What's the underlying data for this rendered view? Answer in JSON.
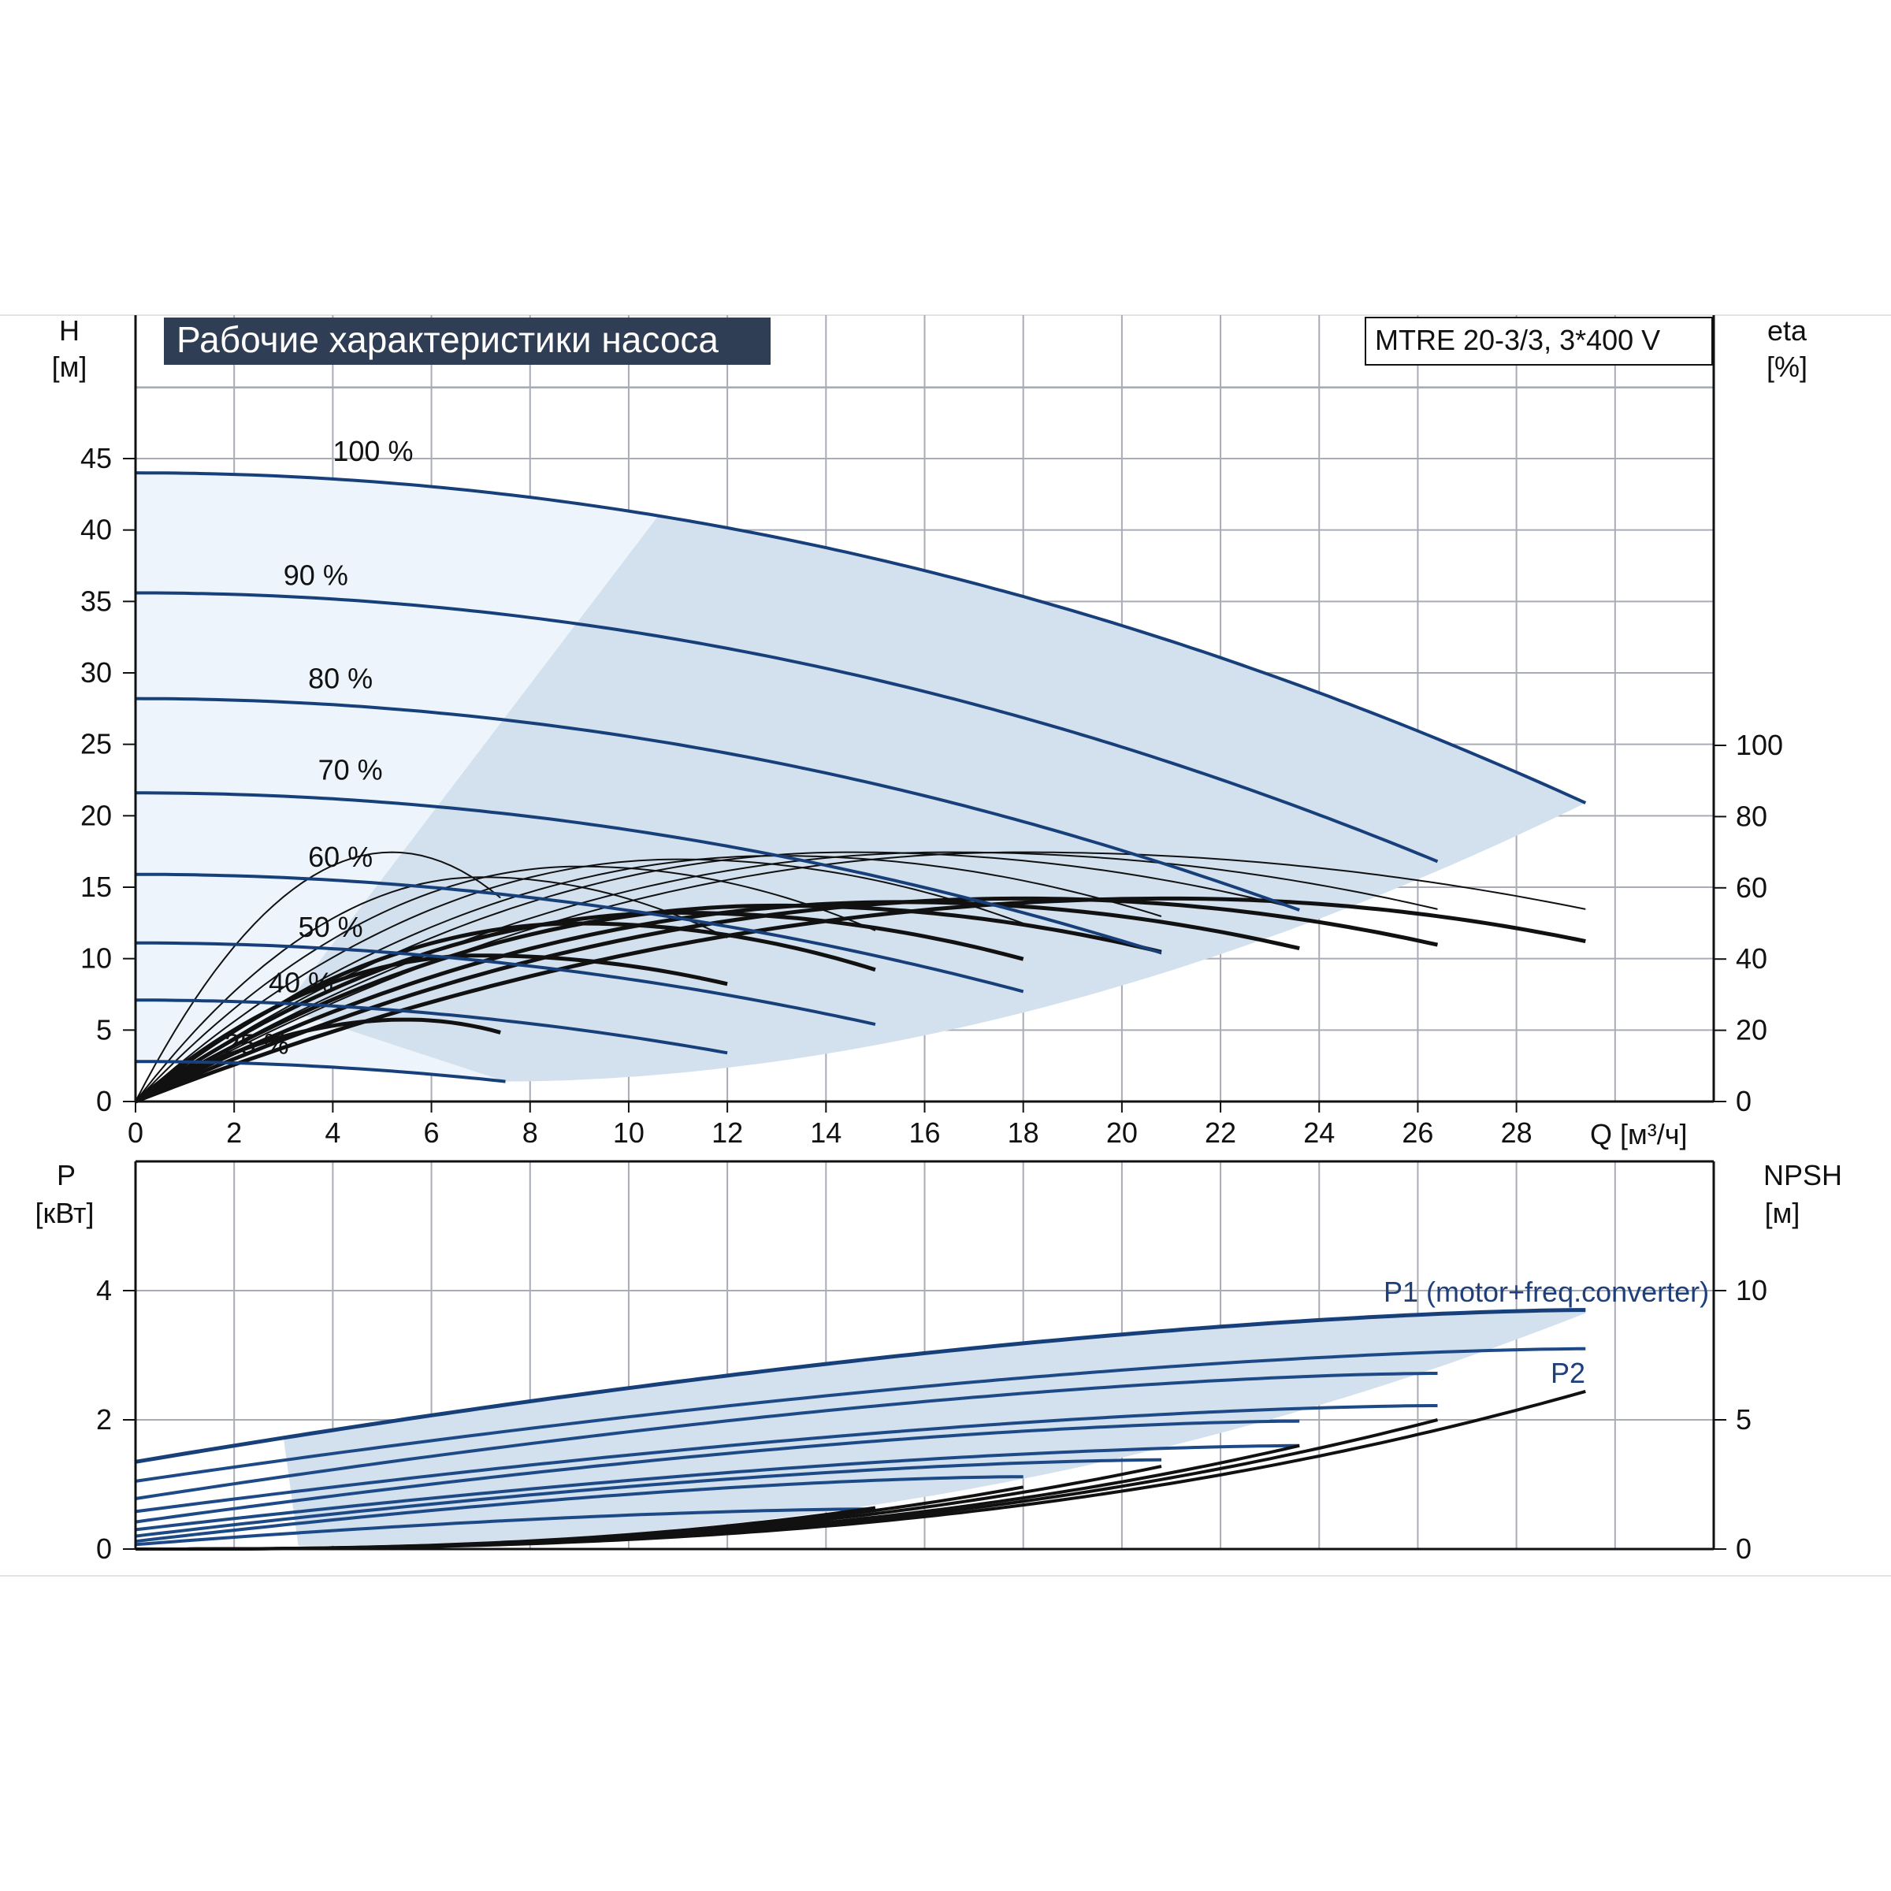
{
  "chart_data": [
    {
      "type": "line",
      "title": "Рабочие характеристики насоса",
      "model": "MTRE 20-3/3, 3*400 V",
      "xlabel": "Q [м³/ч]",
      "ylabel": "H",
      "ylabel_unit": "[м]",
      "y2label": "eta",
      "y2label_unit": "[%]",
      "xlim": [
        0,
        32
      ],
      "ylim": [
        0,
        50
      ],
      "y2lim": [
        0,
        100
      ],
      "x_ticks": [
        "0",
        "2",
        "4",
        "6",
        "8",
        "10",
        "12",
        "14",
        "16",
        "18",
        "20",
        "22",
        "24",
        "26",
        "28"
      ],
      "y_ticks": [
        "0",
        "5",
        "10",
        "15",
        "20",
        "25",
        "30",
        "35",
        "40",
        "45"
      ],
      "y2_ticks": [
        "0",
        "20",
        "40",
        "60",
        "80",
        "100"
      ],
      "grid": true,
      "operating_range_fill": "#d3e0ee",
      "speed_curves": [
        {
          "name": "100 %",
          "H0": 44,
          "max_q": 29.4,
          "h_end": 20.9,
          "label_x": 4,
          "label_y": 45.5
        },
        {
          "name": "90 %",
          "H0": 35.6,
          "max_q": 26.4,
          "h_end": 16.8,
          "label_x": 3,
          "label_y": 36.8
        },
        {
          "name": "80 %",
          "H0": 28.2,
          "max_q": 23.6,
          "h_end": 13.4,
          "label_x": 3.5,
          "label_y": 29.6
        },
        {
          "name": "70 %",
          "H0": 21.6,
          "max_q": 20.8,
          "h_end": 10.4,
          "label_x": 3.7,
          "label_y": 23.2
        },
        {
          "name": "60 %",
          "H0": 15.9,
          "max_q": 18,
          "h_end": 7.7,
          "label_x": 3.5,
          "label_y": 17.1
        },
        {
          "name": "50 %",
          "H0": 11.1,
          "max_q": 15,
          "h_end": 5.4,
          "label_x": 3.3,
          "label_y": 12.2
        },
        {
          "name": "40 %",
          "H0": 7.1,
          "max_q": 12,
          "h_end": 3.4,
          "label_x": 2.7,
          "label_y": 8.3
        },
        {
          "name": "25 %",
          "H0": 2.8,
          "max_q": 7.5,
          "h_end": 1.4,
          "label_x": 1.8,
          "label_y": 4.0
        }
      ],
      "eta_curves": [
        {
          "speed": "100 %",
          "peak_q": 18,
          "peak_eta": 70,
          "max_q": 29.4,
          "eta_end": 54
        },
        {
          "speed": "90 %",
          "peak_q": 16.5,
          "peak_eta": 70,
          "max_q": 26.4,
          "eta_end": 54
        },
        {
          "speed": "80 %",
          "peak_q": 14.5,
          "peak_eta": 70,
          "max_q": 23.6,
          "eta_end": 54
        },
        {
          "speed": "70 %",
          "peak_q": 13,
          "peak_eta": 69,
          "max_q": 20.8,
          "eta_end": 52
        },
        {
          "speed": "60 %",
          "peak_q": 11,
          "peak_eta": 68,
          "max_q": 18,
          "eta_end": 50
        },
        {
          "speed": "50 %",
          "peak_q": 9,
          "peak_eta": 66,
          "max_q": 15,
          "eta_end": 48
        },
        {
          "speed": "40 %",
          "peak_q": 7,
          "peak_eta": 63,
          "max_q": 12,
          "eta_end": 46
        },
        {
          "speed": "25 %",
          "peak_q": 5.2,
          "peak_eta": 70,
          "max_q": 7.5,
          "eta_end": 56
        },
        {
          "speed": "total",
          "peak_q": 21,
          "peak_eta": 57,
          "max_q": 29.4,
          "eta_end": 45
        },
        {
          "speed": "total",
          "peak_q": 18,
          "peak_eta": 57,
          "max_q": 26.4,
          "eta_end": 44
        },
        {
          "speed": "total",
          "peak_q": 15.5,
          "peak_eta": 56,
          "max_q": 23.6,
          "eta_end": 43
        },
        {
          "speed": "total",
          "peak_q": 13,
          "peak_eta": 55,
          "max_q": 20.8,
          "eta_end": 42
        },
        {
          "speed": "total",
          "peak_q": 11,
          "peak_eta": 53,
          "max_q": 18,
          "eta_end": 40
        },
        {
          "speed": "total",
          "peak_q": 9,
          "peak_eta": 50,
          "max_q": 15,
          "eta_end": 37
        },
        {
          "speed": "total",
          "peak_q": 7,
          "peak_eta": 41,
          "max_q": 12,
          "eta_end": 33
        },
        {
          "speed": "total",
          "peak_q": 5.5,
          "peak_eta": 23,
          "max_q": 7.5,
          "eta_end": 19
        }
      ]
    },
    {
      "type": "line",
      "ylabel": "P",
      "ylabel_unit": "[кВт]",
      "y2label": "NPSH",
      "y2label_unit": "[м]",
      "xlim": [
        0,
        32
      ],
      "ylim": [
        0,
        6
      ],
      "y2lim": [
        0,
        15
      ],
      "y_ticks": [
        "0",
        "2",
        "4"
      ],
      "y2_ticks": [
        "0",
        "5",
        "10"
      ],
      "grid": true,
      "p1_label": "P1 (motor+freq.converter)",
      "p2_label": "P2",
      "p1_curves": [
        {
          "speed": "100 %",
          "p0": 1.35,
          "p_end": 3.7,
          "max_q": 29.4
        },
        {
          "speed": "90 %",
          "p0": 1.05,
          "p_end": 3.1,
          "max_q": 29.4
        },
        {
          "speed": "80 %",
          "p0": 0.78,
          "p_end": 2.72,
          "max_q": 26.4
        },
        {
          "speed": "70 %",
          "p0": 0.58,
          "p_end": 2.22,
          "max_q": 26.4
        },
        {
          "speed": "60 %",
          "p0": 0.42,
          "p_end": 1.98,
          "max_q": 23.6
        },
        {
          "speed": "50 %",
          "p0": 0.3,
          "p_end": 1.6,
          "max_q": 23.6
        },
        {
          "speed": "40 %",
          "p0": 0.2,
          "p_end": 1.38,
          "max_q": 20.8
        },
        {
          "speed": "25 %",
          "p0": 0.12,
          "p_end": 1.12,
          "max_q": 18
        },
        {
          "speed": "25 %",
          "p0": 0.07,
          "p_end": 0.62,
          "max_q": 15
        }
      ],
      "npsh_curves": [
        {
          "max_q": 29.4,
          "npsh_end": 6.1
        },
        {
          "max_q": 26.4,
          "npsh_end": 5
        },
        {
          "max_q": 23.6,
          "npsh_end": 4
        },
        {
          "max_q": 20.8,
          "npsh_end": 3.2
        },
        {
          "max_q": 18,
          "npsh_end": 2.4
        },
        {
          "max_q": 15,
          "npsh_end": 1.6
        }
      ]
    }
  ]
}
